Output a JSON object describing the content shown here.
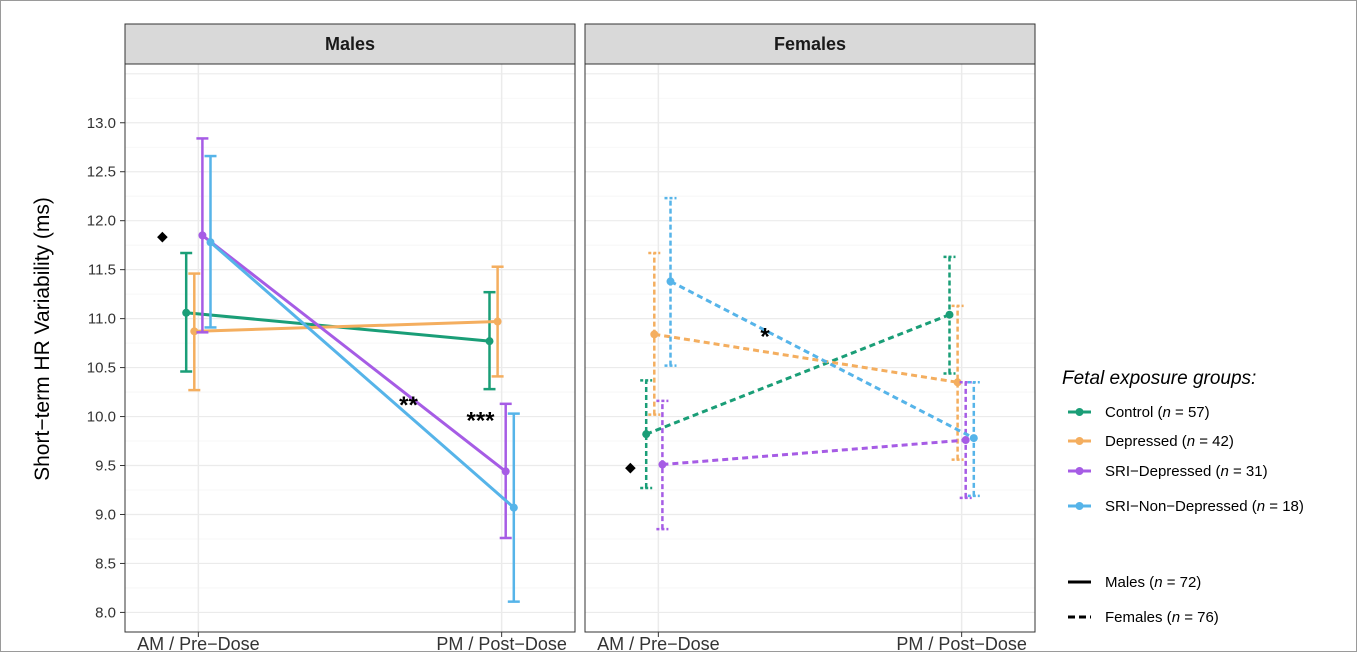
{
  "chart_data": {
    "type": "line",
    "ylabel": "Short−term HR Variability (ms)",
    "xlabel": "",
    "categories": [
      "AM / Pre−Dose",
      "PM / Post−Dose"
    ],
    "ylim": [
      7.8,
      13.6
    ],
    "yticks": [
      "8.0",
      "8.5",
      "9.0",
      "9.5",
      "10.0",
      "10.5",
      "11.0",
      "11.5",
      "12.0",
      "12.5",
      "13.0"
    ],
    "grid": true,
    "facets": [
      {
        "title": "Males",
        "line_style": "solid",
        "series": [
          {
            "name": "Control",
            "color": "#1a9e77",
            "values": [
              11.06,
              10.77
            ],
            "lower": [
              10.46,
              10.28
            ],
            "upper": [
              11.67,
              11.27
            ]
          },
          {
            "name": "Depressed",
            "color": "#f4ae5f",
            "values": [
              10.87,
              10.97
            ],
            "lower": [
              10.27,
              10.41
            ],
            "upper": [
              11.46,
              11.53
            ]
          },
          {
            "name": "SRI−Depressed",
            "color": "#a65ce5",
            "values": [
              11.85,
              9.44
            ],
            "lower": [
              10.86,
              8.76
            ],
            "upper": [
              12.84,
              10.13
            ]
          },
          {
            "name": "SRI−Non−Depressed",
            "color": "#56b4e9",
            "values": [
              11.78,
              9.07
            ],
            "lower": [
              10.91,
              8.11
            ],
            "upper": [
              12.66,
              10.03
            ]
          }
        ],
        "annotations": [
          {
            "text": "◆",
            "x": 0,
            "y": 11.85
          },
          {
            "text": "**",
            "x": 0.63,
            "y": 10.16
          },
          {
            "text": "***",
            "x": 0.79,
            "y": 10.0
          }
        ]
      },
      {
        "title": "Females",
        "line_style": "dashed",
        "series": [
          {
            "name": "Control",
            "color": "#1a9e77",
            "values": [
              9.82,
              11.04
            ],
            "lower": [
              9.27,
              10.44
            ],
            "upper": [
              10.37,
              11.63
            ]
          },
          {
            "name": "Depressed",
            "color": "#f4ae5f",
            "values": [
              10.84,
              10.35
            ],
            "lower": [
              10.02,
              9.56
            ],
            "upper": [
              11.67,
              11.13
            ]
          },
          {
            "name": "SRI−Depressed",
            "color": "#a65ce5",
            "values": [
              9.51,
              9.76
            ],
            "lower": [
              8.85,
              9.17
            ],
            "upper": [
              10.16,
              10.35
            ]
          },
          {
            "name": "SRI−Non−Depressed",
            "color": "#56b4e9",
            "values": [
              11.38,
              9.78
            ],
            "lower": [
              10.52,
              9.19
            ],
            "upper": [
              12.23,
              10.35
            ]
          }
        ],
        "annotations": [
          {
            "text": "◆",
            "x": 0,
            "y": 9.49
          },
          {
            "text": "*",
            "x": 0.4,
            "y": 10.86
          }
        ]
      }
    ],
    "legend": {
      "title": "Fetal exposure groups:",
      "groups": [
        {
          "label": "Control",
          "n": "57",
          "color": "#1a9e77"
        },
        {
          "label": "Depressed",
          "n": "42",
          "color": "#f4ae5f"
        },
        {
          "label": "SRI−Depressed",
          "n": "31",
          "color": "#a65ce5"
        },
        {
          "label": "SRI−Non−Depressed",
          "n": "18",
          "color": "#56b4e9"
        }
      ],
      "linetypes": [
        {
          "label": "Males",
          "n": "72",
          "style": "solid"
        },
        {
          "label": "Females",
          "n": "76",
          "style": "dashed"
        }
      ],
      "n_prefix": " (",
      "n_symbol": "n",
      "n_equals": " = ",
      "n_suffix": ")"
    }
  }
}
